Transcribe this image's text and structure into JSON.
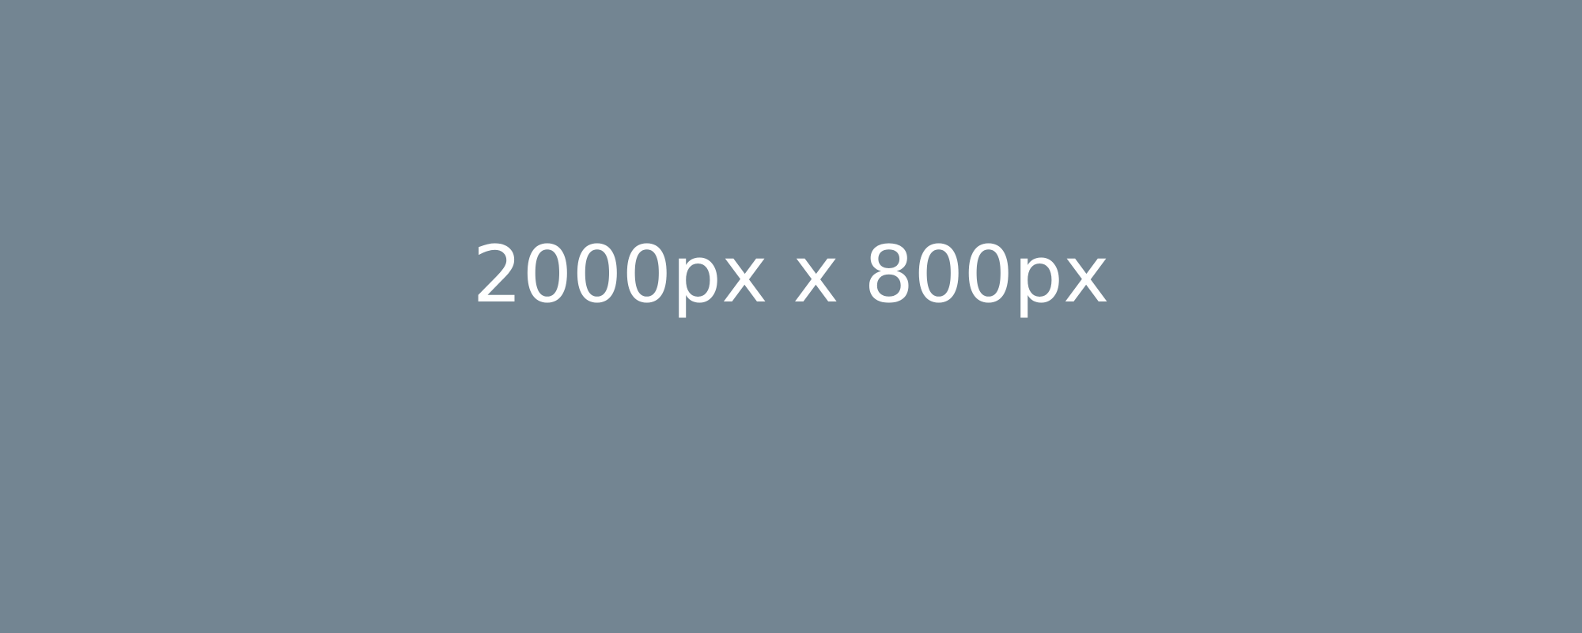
{
  "placeholder": {
    "text": "2000px x 800px",
    "background_color": "#738592",
    "text_color": "#ffffff"
  }
}
